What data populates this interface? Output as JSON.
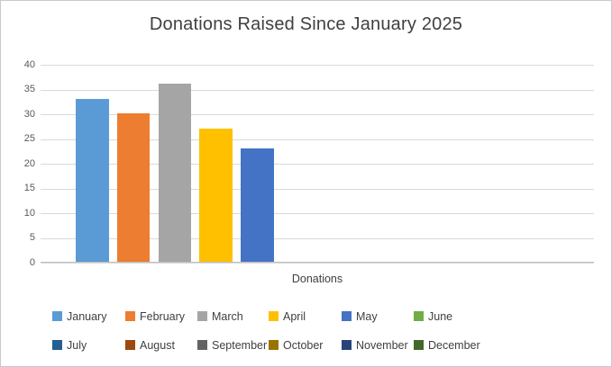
{
  "chart_data": {
    "type": "bar",
    "title": "Donations Raised Since January 2025",
    "categories": [
      "Donations"
    ],
    "series": [
      {
        "name": "January",
        "values": [
          33
        ],
        "color": "#5B9BD5"
      },
      {
        "name": "February",
        "values": [
          30
        ],
        "color": "#ED7D31"
      },
      {
        "name": "March",
        "values": [
          36
        ],
        "color": "#A5A5A5"
      },
      {
        "name": "April",
        "values": [
          27
        ],
        "color": "#FFC000"
      },
      {
        "name": "May",
        "values": [
          23
        ],
        "color": "#4472C4"
      },
      {
        "name": "June",
        "values": [
          null
        ],
        "color": "#70AD47"
      },
      {
        "name": "July",
        "values": [
          null
        ],
        "color": "#255E91"
      },
      {
        "name": "August",
        "values": [
          null
        ],
        "color": "#9E480E"
      },
      {
        "name": "September",
        "values": [
          null
        ],
        "color": "#636363"
      },
      {
        "name": "October",
        "values": [
          null
        ],
        "color": "#997300"
      },
      {
        "name": "November",
        "values": [
          null
        ],
        "color": "#264478"
      },
      {
        "name": "December",
        "values": [
          null
        ],
        "color": "#43682B"
      }
    ],
    "xlabel": "Donations",
    "ylabel": "",
    "ylim": [
      0,
      40
    ],
    "yticks": [
      0,
      5,
      10,
      15,
      20,
      25,
      30,
      35,
      40
    ],
    "grid": true,
    "gridline_color": "#D9D9D9",
    "axis_line_color": "#BFBFBF",
    "legend_position": "bottom",
    "legend_rows": [
      [
        "January",
        "February",
        "March",
        "April",
        "May",
        "June"
      ],
      [
        "July",
        "August",
        "September",
        "October",
        "November",
        "December"
      ]
    ]
  }
}
